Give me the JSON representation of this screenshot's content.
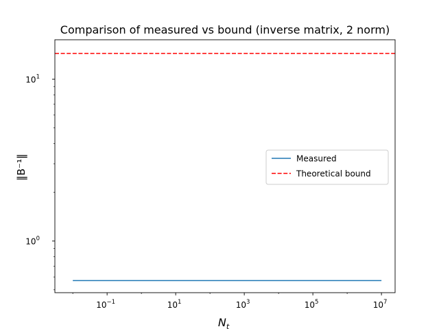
{
  "chart_data": {
    "type": "line",
    "title": "Comparison of measured vs bound (inverse matrix, 2 norm)",
    "xlabel_base": "N",
    "xlabel_sub": "t",
    "ylabel": "‖B⁻¹‖",
    "xscale": "log",
    "yscale": "log",
    "xlim": [
      0.003,
      25000000
    ],
    "ylim": [
      0.48,
      17.5
    ],
    "grid": false,
    "legend_position": "center-right",
    "x_ticks": [
      {
        "value": 0.1,
        "base": "10",
        "exp": "−1"
      },
      {
        "value": 10,
        "base": "10",
        "exp": "1"
      },
      {
        "value": 1000,
        "base": "10",
        "exp": "3"
      },
      {
        "value": 100000,
        "base": "10",
        "exp": "5"
      },
      {
        "value": 10000000,
        "base": "10",
        "exp": "7"
      }
    ],
    "y_ticks": [
      {
        "value": 1,
        "base": "10",
        "exp": "0"
      },
      {
        "value": 10,
        "base": "10",
        "exp": "1"
      }
    ],
    "series": [
      {
        "name": "Measured",
        "color": "#1f77b4",
        "style": "solid",
        "x": [
          0.01,
          10000000
        ],
        "y": [
          0.57,
          0.57
        ]
      },
      {
        "name": "Theoretical bound",
        "color": "#ff0000",
        "style": "dashed",
        "span": "full",
        "y": [
          14.4,
          14.4
        ]
      }
    ]
  }
}
